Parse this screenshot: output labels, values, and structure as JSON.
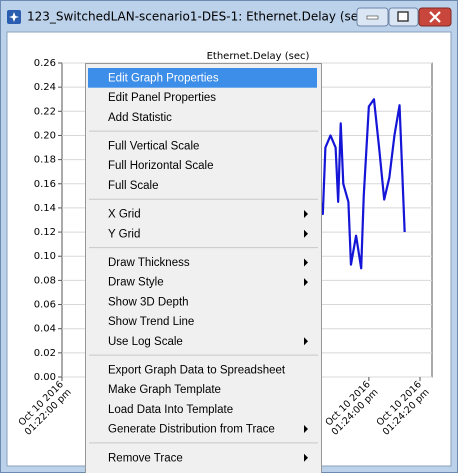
{
  "window": {
    "title": "123_SwitchedLAN-scenario1-DES-1: Ethernet.Delay (sec)"
  },
  "chart_data": {
    "type": "line",
    "title": "Ethernet.Delay (sec)",
    "x": [
      "01:23:40",
      "01:23:42",
      "01:23:43",
      "01:23:45",
      "01:23:47",
      "01:23:48",
      "01:23:49",
      "01:23:50",
      "01:23:52",
      "01:23:53",
      "01:23:55",
      "01:23:57",
      "01:23:58",
      "01:24:00",
      "01:24:02",
      "01:24:04",
      "01:24:06",
      "01:24:08",
      "01:24:10",
      "01:24:12",
      "01:24:14"
    ],
    "series": [
      {
        "name": "Ethernet.Delay (sec)",
        "color": "#1515d8",
        "values": [
          0.16,
          0.135,
          0.19,
          0.2,
          0.19,
          0.145,
          0.21,
          0.16,
          0.145,
          0.093,
          0.117,
          0.09,
          0.15,
          0.224,
          0.23,
          0.19,
          0.147,
          0.165,
          0.2,
          0.225,
          0.12
        ]
      }
    ],
    "xlim": [
      "01:22:00",
      "01:24:20"
    ],
    "xticks": [
      {
        "value": "01:22:00",
        "label": [
          "Oct 10 2016",
          "01:22:00 pm"
        ]
      },
      {
        "value": "01:24:00",
        "label": [
          "Oct 10 2016",
          "01:24:00 pm"
        ]
      },
      {
        "value": "01:24:20",
        "label": [
          "Oct 10 2016",
          "01:24:20 pm"
        ]
      }
    ],
    "ylim": [
      0,
      0.26
    ],
    "yticks": [
      0.26,
      0.24,
      0.22,
      {
        "value": 0.2,
        "label": "0.20"
      },
      0.18,
      0.16,
      0.14,
      0.12,
      {
        "value": 0.1,
        "label": "0.10"
      },
      0.08,
      0.06,
      0.04,
      0.02,
      {
        "value": 0,
        "label": "0.00"
      }
    ],
    "grid": true
  },
  "menu": {
    "groups": [
      [
        {
          "label": "Edit Graph Properties",
          "highlighted": true
        },
        {
          "label": "Edit Panel Properties"
        },
        {
          "label": "Add Statistic"
        }
      ],
      [
        {
          "label": "Full Vertical Scale"
        },
        {
          "label": "Full Horizontal Scale"
        },
        {
          "label": "Full Scale"
        }
      ],
      [
        {
          "label": "X Grid",
          "submenu": true
        },
        {
          "label": "Y Grid",
          "submenu": true
        }
      ],
      [
        {
          "label": "Draw Thickness",
          "submenu": true
        },
        {
          "label": "Draw Style",
          "submenu": true
        },
        {
          "label": "Show 3D Depth"
        },
        {
          "label": "Show Trend Line"
        },
        {
          "label": "Use Log Scale",
          "submenu": true
        }
      ],
      [
        {
          "label": "Export Graph Data to Spreadsheet"
        },
        {
          "label": "Make Graph Template"
        },
        {
          "label": "Load Data Into Template"
        },
        {
          "label": "Generate Distribution from Trace",
          "submenu": true
        }
      ],
      [
        {
          "label": "Remove Trace",
          "submenu": true
        }
      ]
    ]
  }
}
